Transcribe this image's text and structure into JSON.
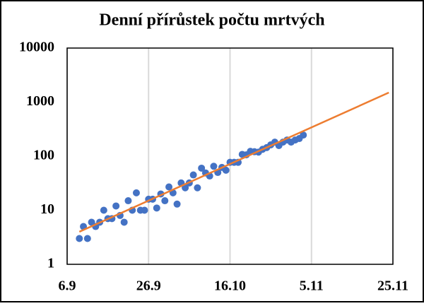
{
  "chart_data": {
    "type": "scatter",
    "title": "Denní přírůstek počtu mrtvých",
    "x": [
      "09-09",
      "09-10",
      "09-11",
      "09-12",
      "09-13",
      "09-14",
      "09-15",
      "09-16",
      "09-17",
      "09-18",
      "09-19",
      "09-20",
      "09-21",
      "09-22",
      "09-23",
      "09-24",
      "09-25",
      "09-26",
      "09-27",
      "09-28",
      "09-29",
      "09-30",
      "10-01",
      "10-02",
      "10-03",
      "10-04",
      "10-05",
      "10-06",
      "10-07",
      "10-08",
      "10-09",
      "10-10",
      "10-11",
      "10-12",
      "10-13",
      "10-14",
      "10-15",
      "10-16",
      "10-17",
      "10-18",
      "10-19",
      "10-20",
      "10-21",
      "10-22",
      "10-23",
      "10-24",
      "10-25",
      "10-26",
      "10-27",
      "10-28",
      "10-29",
      "10-30",
      "10-31",
      "11-01",
      "11-02",
      "11-03"
    ],
    "series": [
      {
        "color": "#4472c4",
        "values": [
          3,
          5,
          3,
          6,
          5,
          6,
          10,
          7,
          7,
          12,
          8,
          6,
          15,
          10,
          21,
          10,
          10,
          16,
          16,
          11,
          20,
          15,
          27,
          21,
          13,
          32,
          26,
          32,
          45,
          26,
          60,
          49,
          43,
          65,
          50,
          62,
          55,
          77,
          77,
          77,
          108,
          106,
          123,
          121,
          119,
          134,
          144,
          162,
          182,
          157,
          182,
          199,
          182,
          199,
          212,
          246
        ]
      },
      {
        "type": "line",
        "color": "#ed7d31",
        "x": [
          "09-09",
          "11-24"
        ],
        "values": [
          4,
          1500
        ]
      }
    ],
    "yscale": "log",
    "ylim": [
      1,
      10000
    ],
    "yticks": [
      1,
      10,
      100,
      1000,
      10000
    ],
    "xlim": [
      "09-06",
      "11-25"
    ],
    "xticks": [
      {
        "value": "09-06",
        "label": "6.9"
      },
      {
        "value": "09-26",
        "label": "26.9"
      },
      {
        "value": "10-16",
        "label": "16.10"
      },
      {
        "value": "11-05",
        "label": "5.11"
      },
      {
        "value": "11-25",
        "label": "25.11"
      }
    ],
    "xgrid": true
  }
}
